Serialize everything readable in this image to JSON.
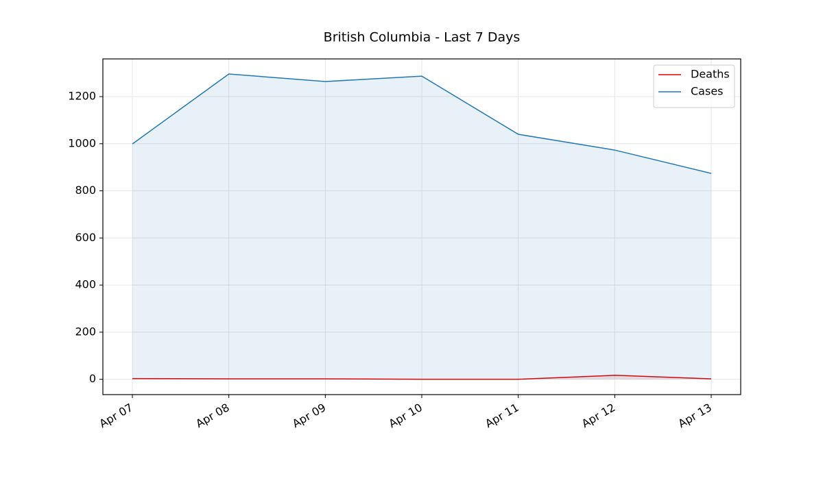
{
  "chart_data": {
    "type": "area-line",
    "title": "British Columbia - Last 7 Days",
    "categories": [
      "Apr 07",
      "Apr 08",
      "Apr 09",
      "Apr 10",
      "Apr 11",
      "Apr 12",
      "Apr 13"
    ],
    "series": [
      {
        "name": "Deaths",
        "color": "#e00000",
        "values": [
          3,
          2,
          2,
          0,
          0,
          17,
          2
        ]
      },
      {
        "name": "Cases",
        "color": "#1f77b4",
        "values": [
          999,
          1296,
          1264,
          1287,
          1040,
          973,
          874
        ]
      }
    ],
    "ylim": [
      -65,
      1360
    ],
    "yticks": [
      0,
      200,
      400,
      600,
      800,
      1000,
      1200
    ],
    "grid": true,
    "legend": "upper right"
  }
}
